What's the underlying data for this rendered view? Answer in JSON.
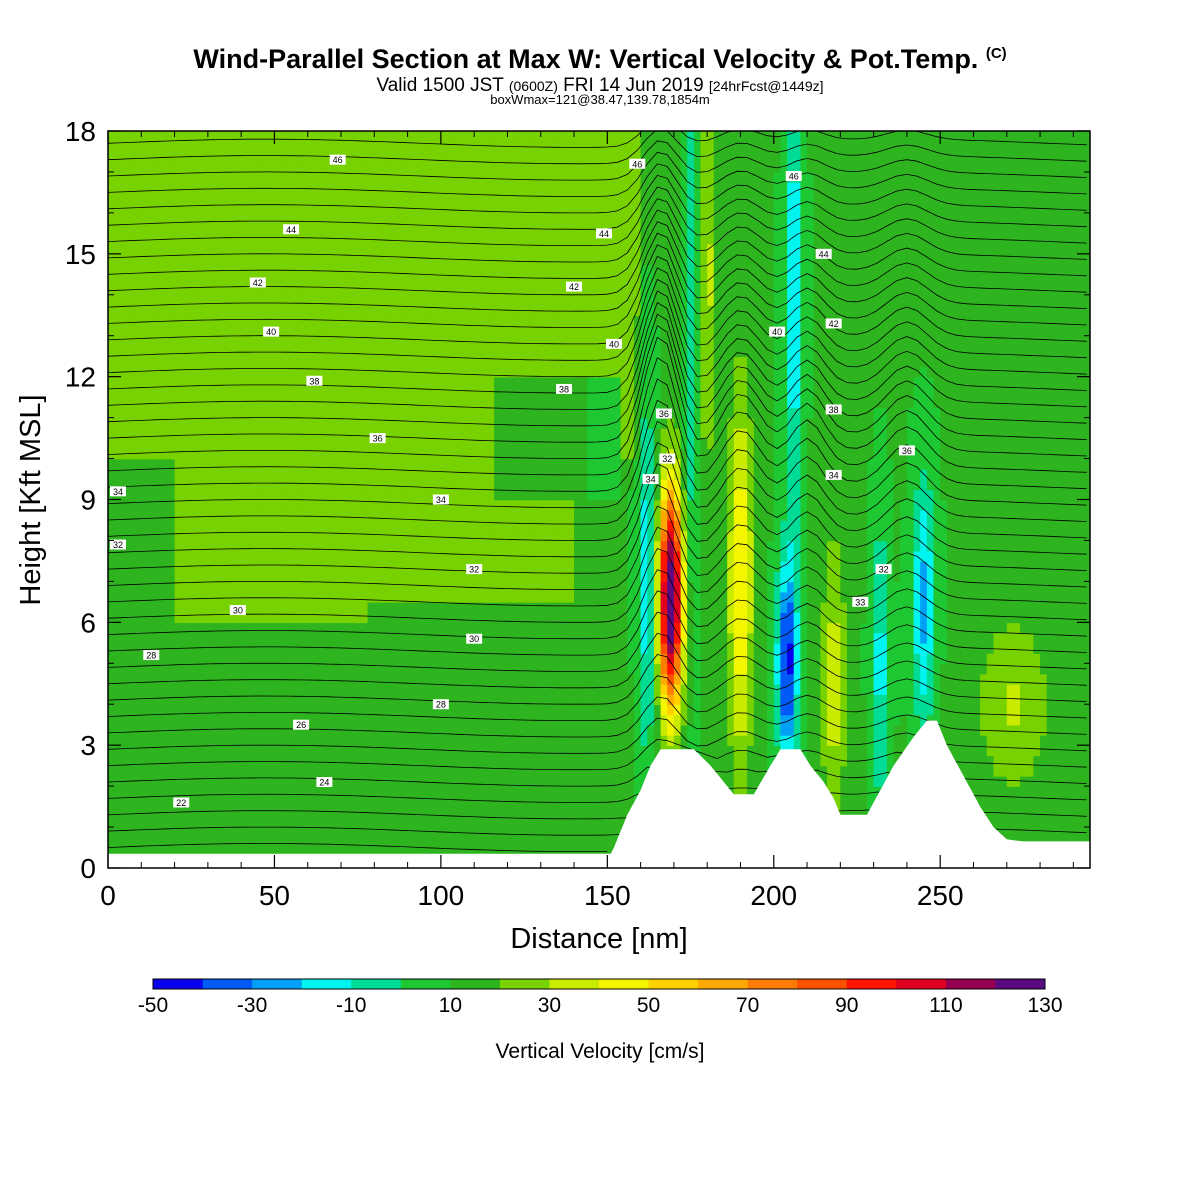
{
  "title": {
    "main": "Wind-Parallel Section at Max W: Vertical Velocity & Pot.Temp.",
    "copyright_mark": "(C)",
    "valid_prefix": "Valid 1500 JST",
    "utc": "(0600Z)",
    "valid_date": "FRI 14 Jun 2019",
    "forecast": "[24hrFcst@1449z]",
    "boxwmax": "boxWmax=121@38.47,139.78,1854m"
  },
  "colorbar_label": "Vertical Velocity [cm/s]",
  "chart_data": {
    "type": "heatmap",
    "xlabel": "Distance [nm]",
    "ylabel": "Height [Kft MSL]",
    "xlim": [
      0,
      295
    ],
    "ylim": [
      0,
      18
    ],
    "x_ticks": [
      0,
      50,
      100,
      150,
      200,
      250
    ],
    "y_ticks": [
      0,
      3,
      6,
      9,
      12,
      15,
      18
    ],
    "colorbar": {
      "levels": [
        -50,
        -40,
        -30,
        -20,
        -10,
        0,
        10,
        20,
        30,
        40,
        50,
        60,
        70,
        80,
        90,
        100,
        110,
        120,
        130
      ],
      "tick_labels": [
        "-50",
        "-30",
        "-10",
        "10",
        "30",
        "50",
        "70",
        "90",
        "110",
        "130"
      ],
      "colors": [
        "#0a00f0",
        "#005af8",
        "#00a0f6",
        "#00f5f0",
        "#00dc96",
        "#1ec832",
        "#2db41e",
        "#78d200",
        "#c8eb00",
        "#f5f500",
        "#ffd200",
        "#ffaa00",
        "#ff7d00",
        "#ff5000",
        "#ff1400",
        "#e1001e",
        "#960050",
        "#5a0a82"
      ]
    },
    "theta_contour_labels": [
      {
        "x": 69,
        "y": 17.3,
        "v": "46"
      },
      {
        "x": 55,
        "y": 15.6,
        "v": "44"
      },
      {
        "x": 45,
        "y": 14.3,
        "v": "42"
      },
      {
        "x": 49,
        "y": 13.1,
        "v": "40"
      },
      {
        "x": 62,
        "y": 11.9,
        "v": "38"
      },
      {
        "x": 81,
        "y": 10.5,
        "v": "36"
      },
      {
        "x": 3,
        "y": 9.2,
        "v": "34"
      },
      {
        "x": 100,
        "y": 9.0,
        "v": "34"
      },
      {
        "x": 3,
        "y": 7.9,
        "v": "32"
      },
      {
        "x": 110,
        "y": 7.3,
        "v": "32"
      },
      {
        "x": 39,
        "y": 6.3,
        "v": "30"
      },
      {
        "x": 110,
        "y": 5.6,
        "v": "30"
      },
      {
        "x": 13,
        "y": 5.2,
        "v": "28"
      },
      {
        "x": 100,
        "y": 4.0,
        "v": "28"
      },
      {
        "x": 58,
        "y": 3.5,
        "v": "26"
      },
      {
        "x": 65,
        "y": 2.1,
        "v": "24"
      },
      {
        "x": 22,
        "y": 1.6,
        "v": "22"
      },
      {
        "x": 159,
        "y": 17.2,
        "v": "46"
      },
      {
        "x": 149,
        "y": 15.5,
        "v": "44"
      },
      {
        "x": 140,
        "y": 14.2,
        "v": "42"
      },
      {
        "x": 152,
        "y": 12.8,
        "v": "40"
      },
      {
        "x": 137,
        "y": 11.7,
        "v": "38"
      },
      {
        "x": 167,
        "y": 11.1,
        "v": "36"
      },
      {
        "x": 168,
        "y": 10.0,
        "v": "32"
      },
      {
        "x": 163,
        "y": 9.5,
        "v": "34"
      },
      {
        "x": 206,
        "y": 16.9,
        "v": "46"
      },
      {
        "x": 215,
        "y": 15.0,
        "v": "44"
      },
      {
        "x": 218,
        "y": 13.3,
        "v": "42"
      },
      {
        "x": 201,
        "y": 13.1,
        "v": "40"
      },
      {
        "x": 218,
        "y": 11.2,
        "v": "38"
      },
      {
        "x": 240,
        "y": 10.2,
        "v": "36"
      },
      {
        "x": 218,
        "y": 9.6,
        "v": "34"
      },
      {
        "x": 233,
        "y": 7.3,
        "v": "32"
      },
      {
        "x": 226,
        "y": 6.5,
        "v": "33"
      }
    ]
  }
}
